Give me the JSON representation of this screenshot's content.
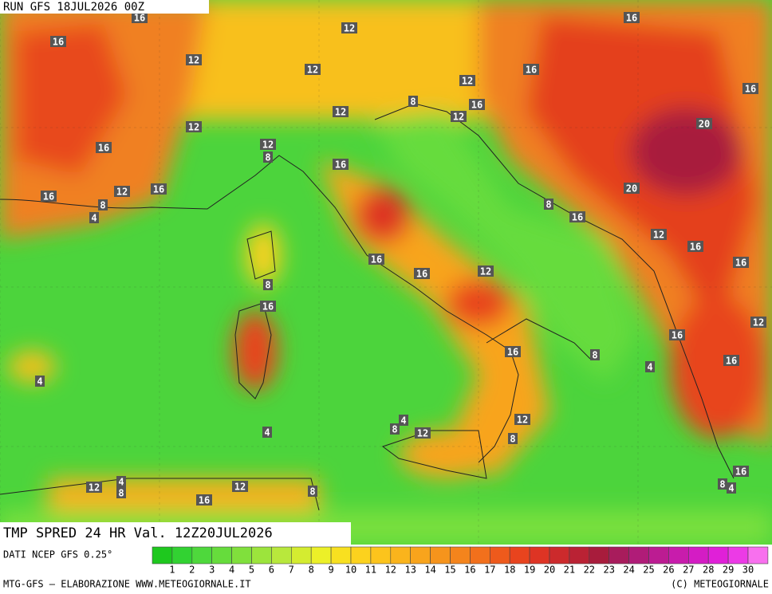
{
  "header": {
    "run": "RUN GFS 18JUL2026 00Z"
  },
  "map": {
    "contour_labels": [
      16,
      16,
      12,
      16,
      12,
      12,
      16,
      12,
      16,
      8,
      16,
      12,
      12,
      20,
      12,
      16,
      12,
      8,
      16,
      20,
      16,
      12,
      16,
      8,
      4,
      8,
      16,
      12,
      16,
      16,
      16,
      16,
      12,
      8,
      16,
      12,
      16,
      16,
      8,
      16,
      4,
      4,
      12,
      4,
      8,
      12,
      8,
      4,
      16,
      12,
      4,
      8,
      12,
      8,
      4,
      8,
      16
    ]
  },
  "footer": {
    "product": "TMP SPRED 24 HR Val. 12Z20JUL2026",
    "source": "DATI NCEP GFS 0.25°",
    "credit_left": "MTG-GFS — ELABORAZIONE WWW.METEOGIORNALE.IT",
    "credit_right": "(C) METEOGIORNALE"
  },
  "scale": {
    "labels": [
      1,
      2,
      3,
      4,
      5,
      6,
      7,
      8,
      9,
      10,
      11,
      12,
      13,
      14,
      15,
      16,
      17,
      18,
      19,
      20,
      21,
      22,
      23,
      24,
      25,
      26,
      27,
      28,
      29,
      30
    ],
    "colors": [
      "#1ec81e",
      "#32d232",
      "#4ed83c",
      "#66dc3c",
      "#80e03c",
      "#9ce43c",
      "#b8e83c",
      "#d4ec30",
      "#ecf028",
      "#f8e020",
      "#fcd21e",
      "#fcc41c",
      "#fab41c",
      "#f8a41c",
      "#f6941c",
      "#f4841c",
      "#f2701c",
      "#ee5a1c",
      "#e8441e",
      "#de3424",
      "#cc2a2c",
      "#ba2234",
      "#a81c3c",
      "#a81c5c",
      "#b01c78",
      "#bc1c92",
      "#c81cac",
      "#d41cc4",
      "#e020d8",
      "#ec3ae6",
      "#f870ee"
    ]
  }
}
